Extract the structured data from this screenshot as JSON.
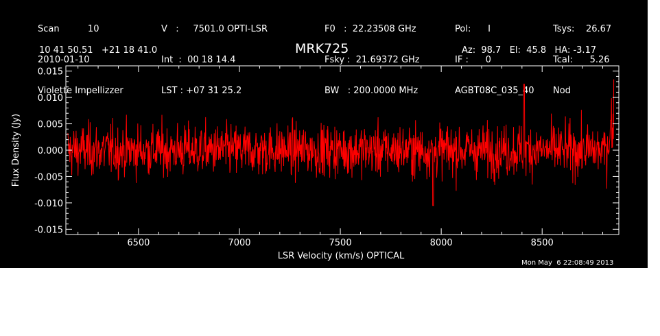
{
  "header": {
    "col1": [
      "Scan          10",
      "2010-01-10",
      "Violette Impellizzer"
    ],
    "col2": [
      "V   :     7501.0 OPTI-LSR",
      "Int  :  00 18 14.4",
      "LST : +07 31 25.2"
    ],
    "col3": [
      "F0   :  22.23508 GHz",
      "Fsky :  21.69372 GHz",
      "BW   : 200.0000 MHz"
    ],
    "col4": [
      "Pol:      I",
      "IF :      0",
      "AGBT08C_035_40"
    ],
    "col5": [
      "Tsys:    26.67",
      "Tcal:      5.26",
      "Nod"
    ],
    "coords": "10 41 50.51   +21 18 41.0",
    "source": "MRK725",
    "pointing": "Az:  98.7   El:  45.8   HA: -3.17",
    "timestamp": "Mon May  6 22:08:49 2013"
  },
  "chart_data": {
    "type": "line",
    "title": "MRK725",
    "xlabel": "LSR Velocity (km/s) OPTICAL",
    "ylabel": "Flux Density (Jy)",
    "xlim": [
      6140,
      8880
    ],
    "ylim": [
      -0.016,
      0.016
    ],
    "xticks": [
      6500,
      7000,
      7500,
      8000,
      8500
    ],
    "xtick_labels": [
      "6500",
      "7000",
      "7500",
      "8000",
      "8500"
    ],
    "yticks": [
      -0.015,
      -0.01,
      -0.005,
      0.0,
      0.005,
      0.01,
      0.015
    ],
    "ytick_labels": [
      "-0.015",
      "-0.010",
      "-0.005",
      "0.000",
      "0.005",
      "0.010",
      "0.015"
    ],
    "series": [
      {
        "color": "#ff0000",
        "x_range": [
          6150,
          8855
        ],
        "noise_rms": 0.0027,
        "peak_max": 0.0125,
        "peak_max_x": 8410,
        "peak_min": -0.0105,
        "peak_min_x": 7960,
        "end_rise": 0.0095
      }
    ],
    "grid": false,
    "background": "#000000",
    "axis_color": "#ffffff"
  }
}
